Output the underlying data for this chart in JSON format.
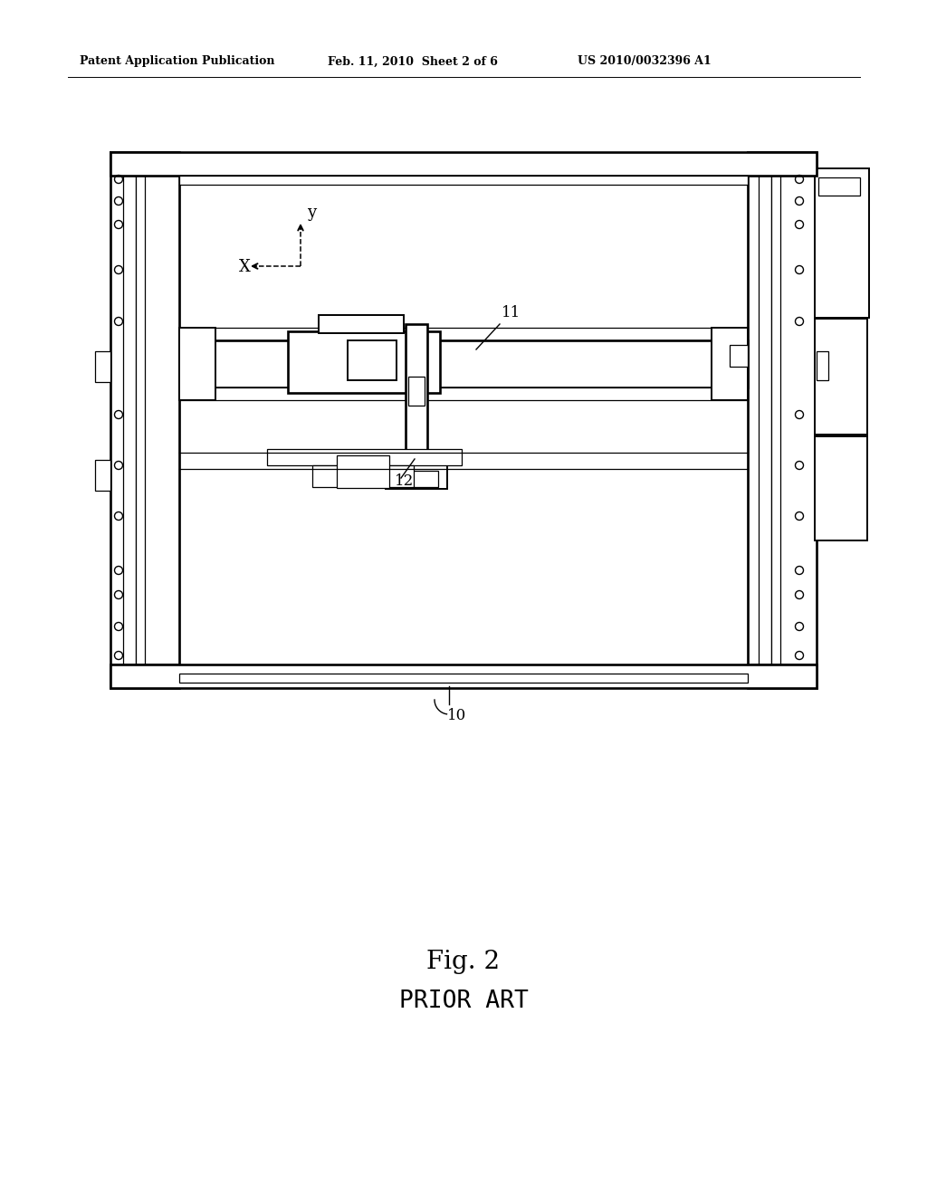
{
  "bg_color": "#ffffff",
  "line_color": "#000000",
  "header_left": "Patent Application Publication",
  "header_mid": "Feb. 11, 2010  Sheet 2 of 6",
  "header_right": "US 2010/0032396 A1",
  "fig_label": "Fig. 2",
  "fig_sublabel": "PRIOR ART",
  "label_10": "10",
  "label_11": "11",
  "label_12": "12",
  "label_x": "X",
  "label_y": "y"
}
